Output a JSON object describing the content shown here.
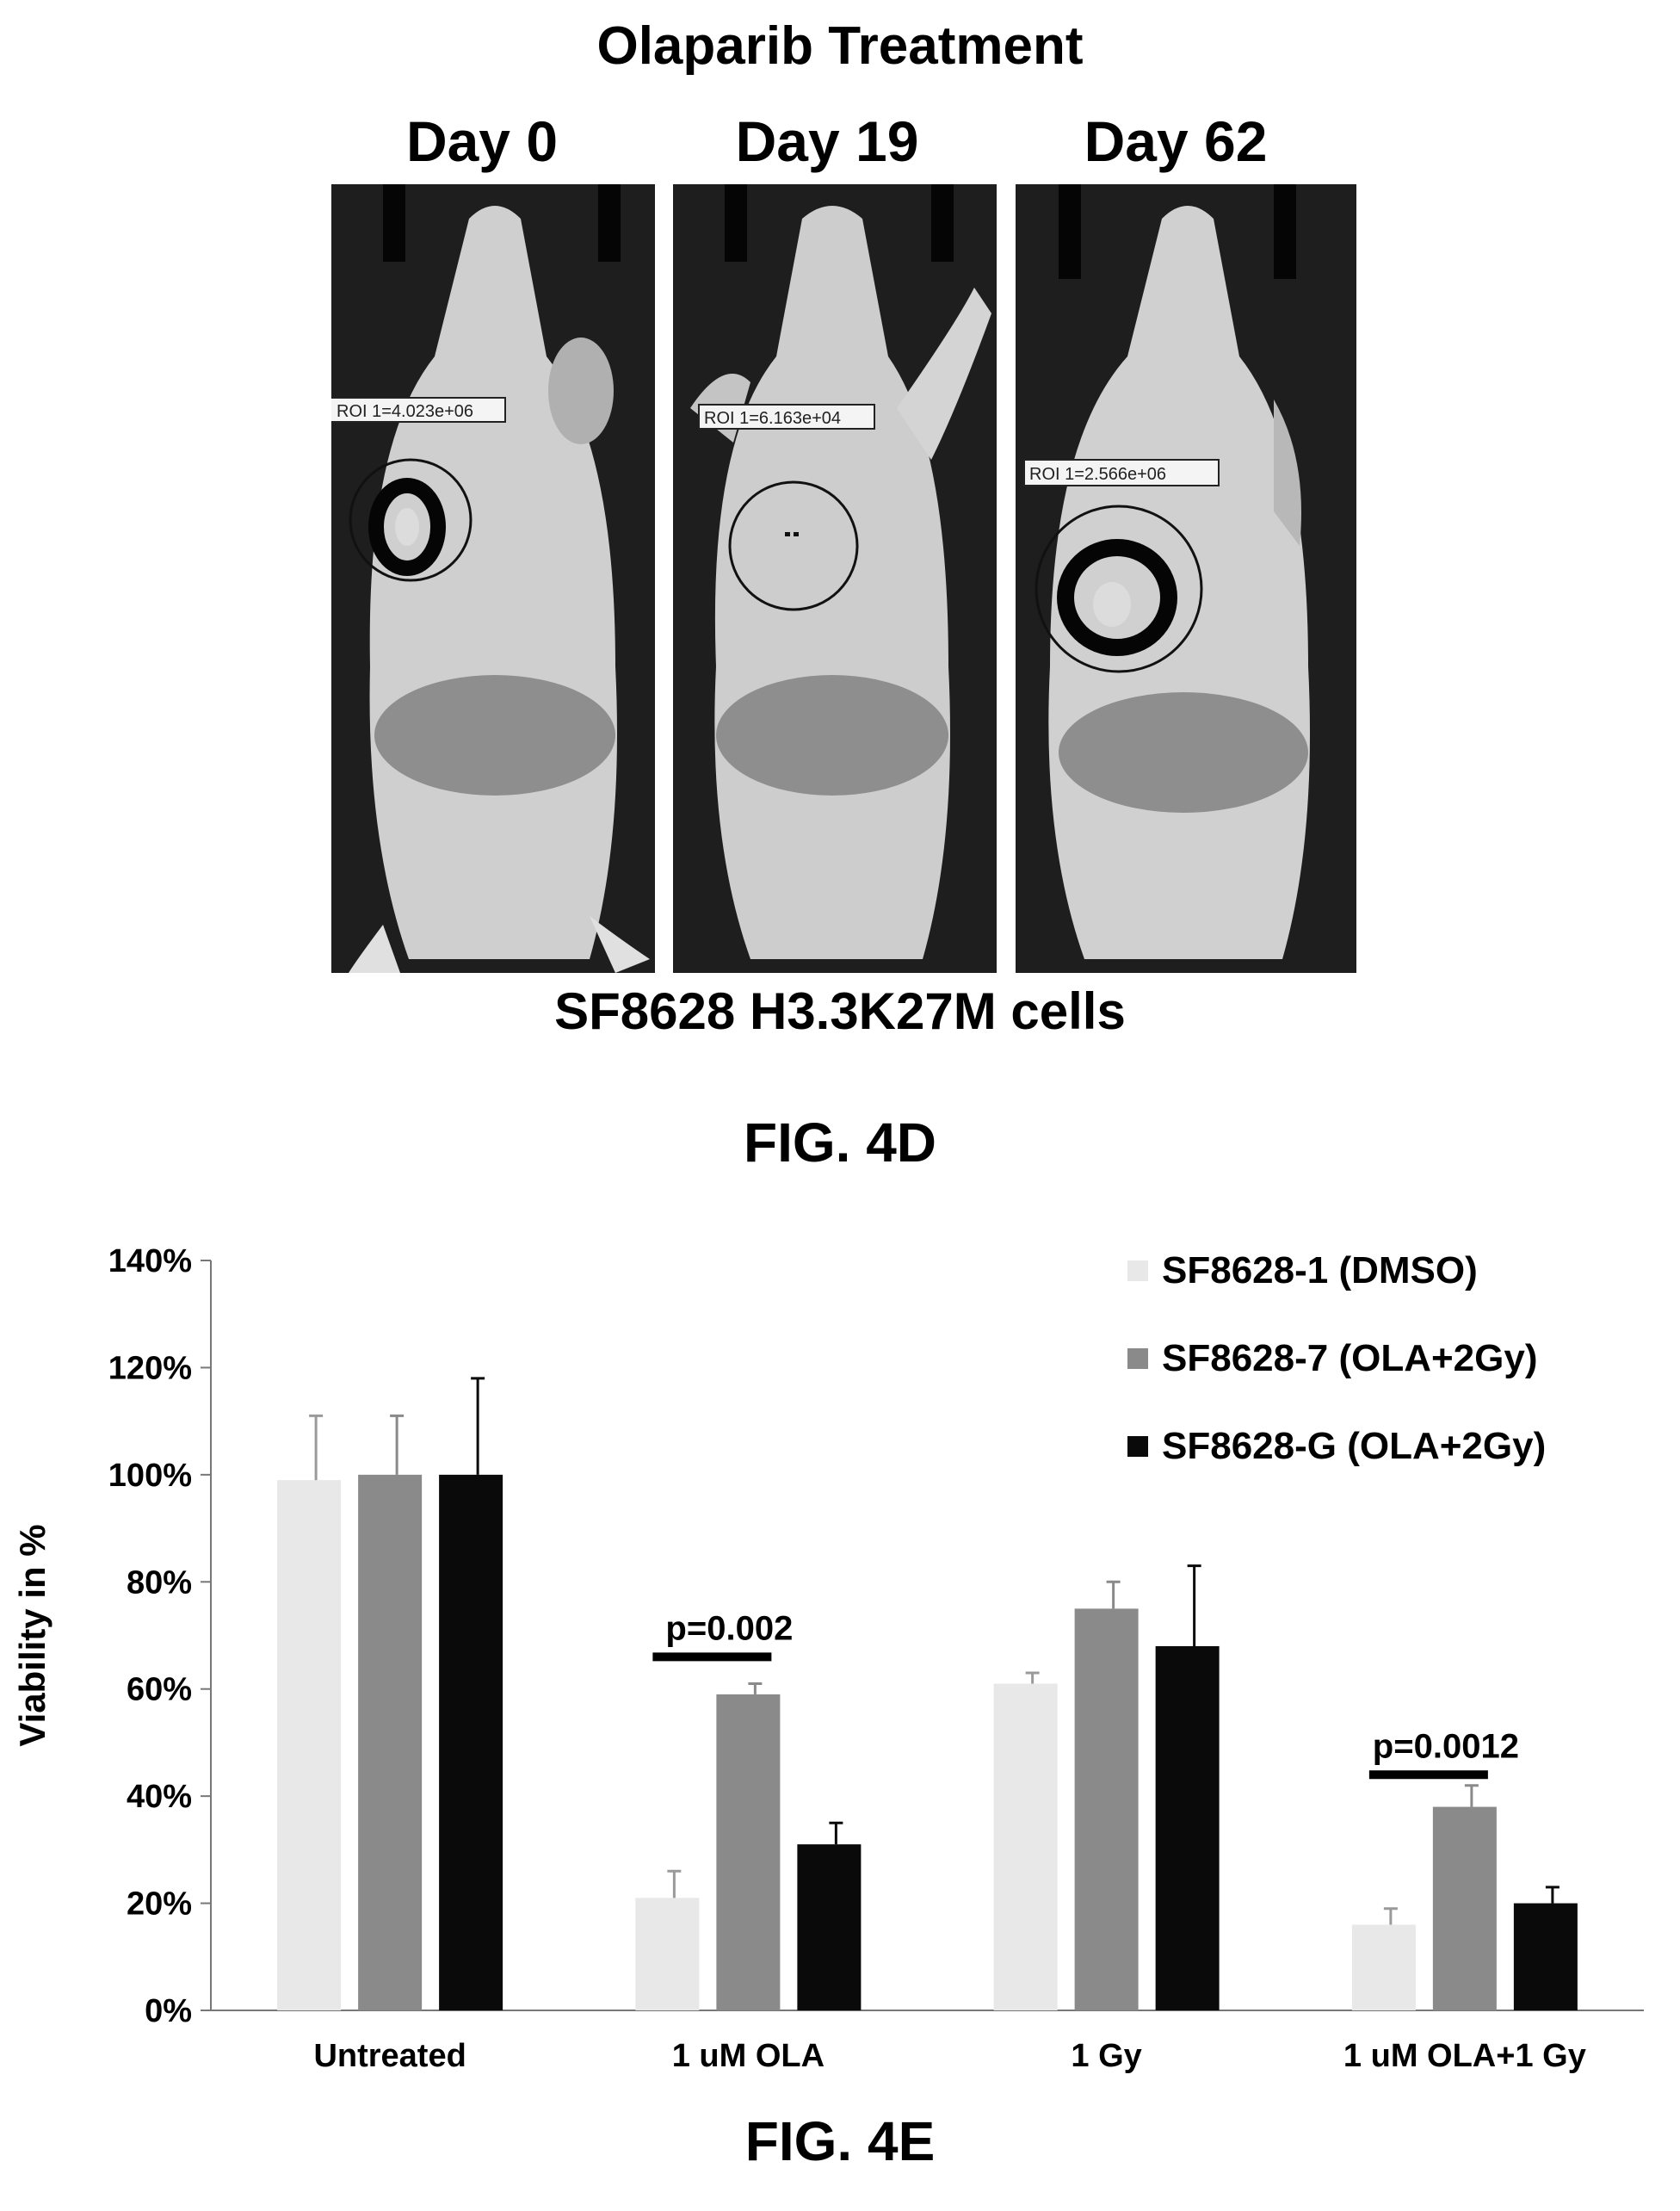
{
  "figure_4d": {
    "title": "Olaparib Treatment",
    "panels": [
      {
        "day": "Day 0",
        "roi": "ROI 1=4.023e+06",
        "signal": "strong"
      },
      {
        "day": "Day 19",
        "roi": "ROI 1=6.163e+04",
        "signal": "weak"
      },
      {
        "day": "Day 62",
        "roi": "ROI 1=2.566e+06",
        "signal": "strong"
      }
    ],
    "cells_label": "SF8628 H3.3K27M cells",
    "fig_label": "FIG. 4D"
  },
  "figure_4e": {
    "fig_label": "FIG. 4E",
    "colors": {
      "s1": "#e8e8e8",
      "s2": "#8a8a8a",
      "s3": "#0a0a0a"
    }
  },
  "chart_data": {
    "type": "bar",
    "ylabel": "Viability in %",
    "ylim": [
      0,
      140
    ],
    "yticks": [
      "0%",
      "20%",
      "40%",
      "60%",
      "80%",
      "100%",
      "120%",
      "140%"
    ],
    "grid": false,
    "legend_position": "top-right",
    "categories": [
      "Untreated",
      "1 uM OLA",
      "1 Gy",
      "1 uM OLA+1 Gy"
    ],
    "series": [
      {
        "name": "SF8628-1 (DMSO)",
        "values": [
          99,
          21,
          61,
          16
        ],
        "errors": [
          12,
          5,
          2,
          3
        ]
      },
      {
        "name": "SF8628-7 (OLA+2Gy)",
        "values": [
          100,
          59,
          75,
          38
        ],
        "errors": [
          11,
          2,
          5,
          4
        ]
      },
      {
        "name": "SF8628-G (OLA+2Gy)",
        "values": [
          100,
          31,
          68,
          20
        ],
        "errors": [
          18,
          4,
          15,
          3
        ]
      }
    ],
    "annotations": [
      {
        "text": "p=0.002",
        "category_index": 1,
        "from_series": 0,
        "to_series": 1,
        "y": 66
      },
      {
        "text": "p=0.0012",
        "category_index": 3,
        "from_series": 0,
        "to_series": 1,
        "y": 44
      }
    ]
  }
}
